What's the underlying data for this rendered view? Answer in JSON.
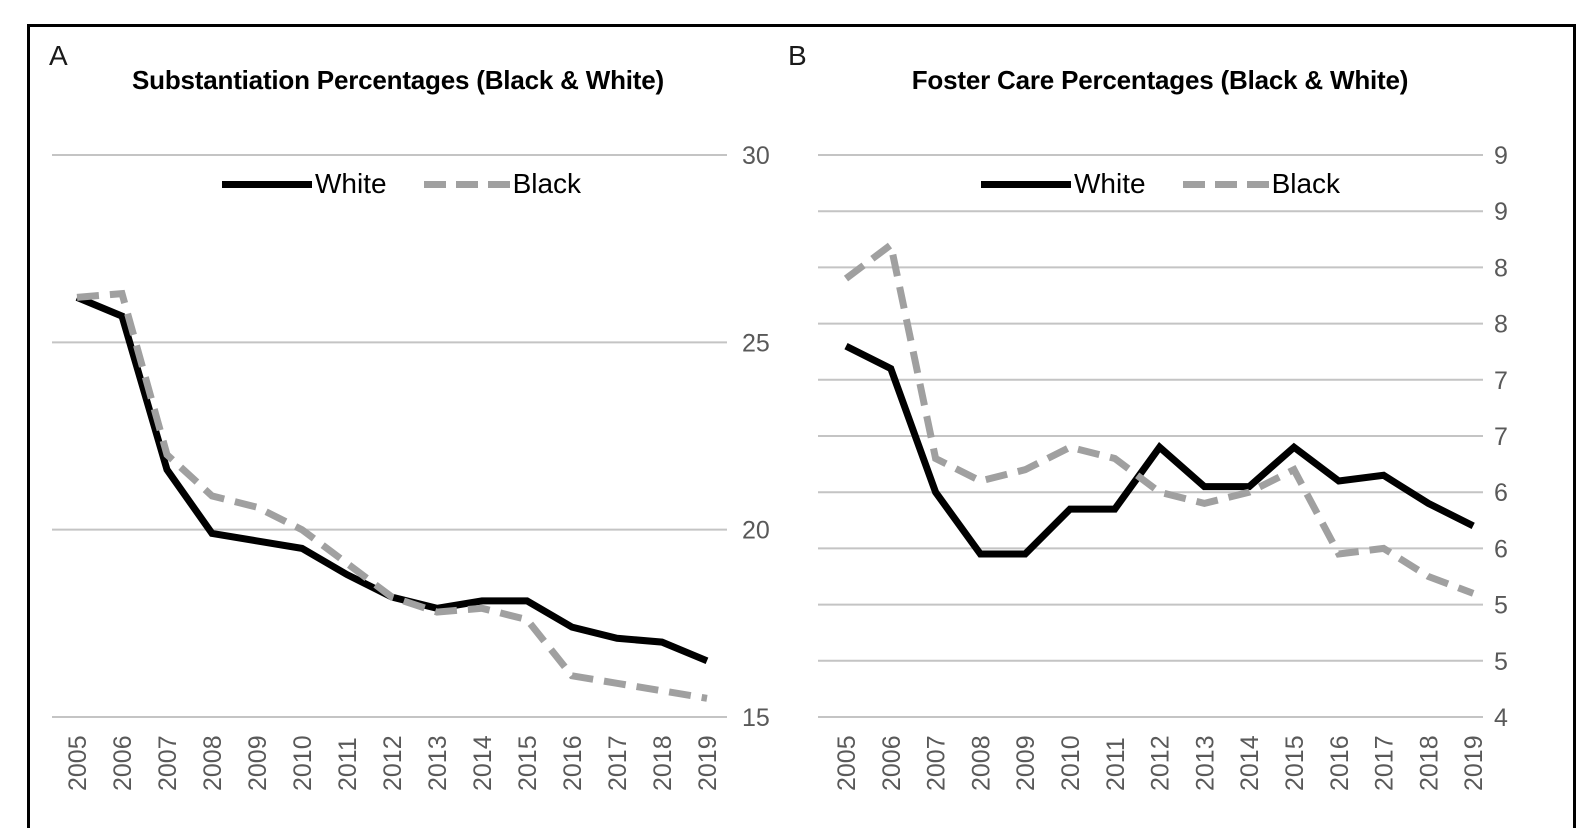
{
  "figure": {
    "background": "#ffffff",
    "frame_border_color": "#000000"
  },
  "colors": {
    "gridline": "#c4c4c4",
    "tick_label": "#595959",
    "title": "#000000",
    "panel_letter": "#1a1a1a",
    "series_white": "#000000",
    "series_black": "#a0a0a0"
  },
  "chart_data": [
    {
      "type": "line",
      "panel_label": "A",
      "title": "Substantiation Percentages (Black & White)",
      "categories": [
        "2005",
        "2006",
        "2007",
        "2008",
        "2009",
        "2010",
        "2011",
        "2012",
        "2013",
        "2014",
        "2015",
        "2016",
        "2017",
        "2018",
        "2019"
      ],
      "series": [
        {
          "name": "White",
          "color": "#000000",
          "dash": "solid",
          "values": [
            26.2,
            25.7,
            21.6,
            19.9,
            19.7,
            19.5,
            18.8,
            18.2,
            17.9,
            18.1,
            18.1,
            17.4,
            17.1,
            17.0,
            16.5
          ]
        },
        {
          "name": "Black",
          "color": "#a0a0a0",
          "dash": "dashed",
          "values": [
            26.2,
            26.3,
            22.0,
            20.9,
            20.6,
            20.0,
            19.1,
            18.2,
            17.8,
            17.9,
            17.6,
            16.1,
            15.9,
            15.7,
            15.5
          ]
        }
      ],
      "ylim": [
        15,
        30
      ],
      "yticks": [
        {
          "value": 30,
          "label": "30"
        },
        {
          "value": 25,
          "label": "25"
        },
        {
          "value": 20,
          "label": "20"
        },
        {
          "value": 15,
          "label": "15"
        }
      ],
      "y_axis_side": "right",
      "grid": true,
      "legend_position": "top-center",
      "x_label_rotation": -90
    },
    {
      "type": "line",
      "panel_label": "B",
      "title": "Foster Care Percentages (Black & White)",
      "categories": [
        "2005",
        "2006",
        "2007",
        "2008",
        "2009",
        "2010",
        "2011",
        "2012",
        "2013",
        "2014",
        "2015",
        "2016",
        "2017",
        "2018",
        "2019"
      ],
      "series": [
        {
          "name": "White",
          "color": "#000000",
          "dash": "solid",
          "values": [
            7.3,
            7.1,
            6.0,
            5.45,
            5.45,
            5.85,
            5.85,
            6.4,
            6.05,
            6.05,
            6.4,
            6.1,
            6.15,
            5.9,
            5.7
          ]
        },
        {
          "name": "Black",
          "color": "#a0a0a0",
          "dash": "dashed",
          "values": [
            7.9,
            8.2,
            6.3,
            6.1,
            6.2,
            6.4,
            6.3,
            6.0,
            5.9,
            6.0,
            6.2,
            5.45,
            5.5,
            5.25,
            5.1
          ]
        }
      ],
      "ylim": [
        4,
        9
      ],
      "yticks": [
        {
          "value": 9,
          "label": "9"
        },
        {
          "value": 8.5,
          "label": "9"
        },
        {
          "value": 8,
          "label": "8"
        },
        {
          "value": 7.5,
          "label": "8"
        },
        {
          "value": 7,
          "label": "7"
        },
        {
          "value": 6.5,
          "label": "7"
        },
        {
          "value": 6,
          "label": "6"
        },
        {
          "value": 5.5,
          "label": "6"
        },
        {
          "value": 5,
          "label": "5"
        },
        {
          "value": 4.5,
          "label": "5"
        },
        {
          "value": 4,
          "label": "4"
        }
      ],
      "y_axis_side": "right",
      "grid": true,
      "legend_position": "top-center",
      "x_label_rotation": -90
    }
  ]
}
